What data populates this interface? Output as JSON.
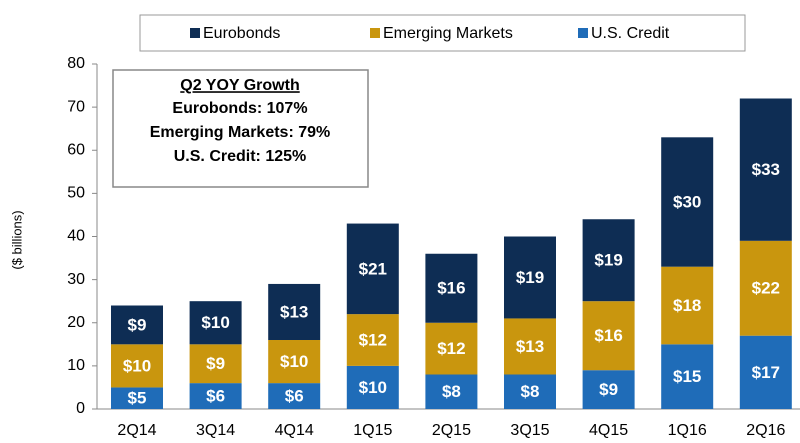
{
  "chart_data": {
    "type": "stacked_bar",
    "y_label": "($ billions)",
    "categories": [
      "2Q14",
      "3Q14",
      "4Q14",
      "1Q15",
      "2Q15",
      "3Q15",
      "4Q15",
      "1Q16",
      "2Q16"
    ],
    "series": [
      {
        "name": "Eurobonds",
        "color": "#0e2d54",
        "values": [
          9,
          10,
          13,
          21,
          16,
          19,
          19,
          30,
          33
        ],
        "value_labels": [
          "$9",
          "$10",
          "$13",
          "$21",
          "$16",
          "$19",
          "$19",
          "$30",
          "$33"
        ]
      },
      {
        "name": "Emerging Markets",
        "color": "#c9960e",
        "values": [
          10,
          9,
          10,
          12,
          12,
          13,
          16,
          18,
          22
        ],
        "value_labels": [
          "$10",
          "$9",
          "$10",
          "$12",
          "$12",
          "$13",
          "$16",
          "$18",
          "$22"
        ]
      },
      {
        "name": "U.S. Credit",
        "color": "#1f6cb8",
        "values": [
          5,
          6,
          6,
          10,
          8,
          8,
          9,
          15,
          17
        ],
        "value_labels": [
          "$5",
          "$6",
          "$6",
          "$10",
          "$8",
          "$8",
          "$9",
          "$15",
          "$17"
        ]
      }
    ],
    "ylim": [
      0,
      80
    ],
    "yticks": [
      0,
      10,
      20,
      30,
      40,
      50,
      60,
      70,
      80
    ],
    "annotation": {
      "title": "Q2 YOY Growth",
      "lines": [
        "Eurobonds: 107%",
        "Emerging Markets: 79%",
        "U.S. Credit: 125%"
      ]
    }
  }
}
